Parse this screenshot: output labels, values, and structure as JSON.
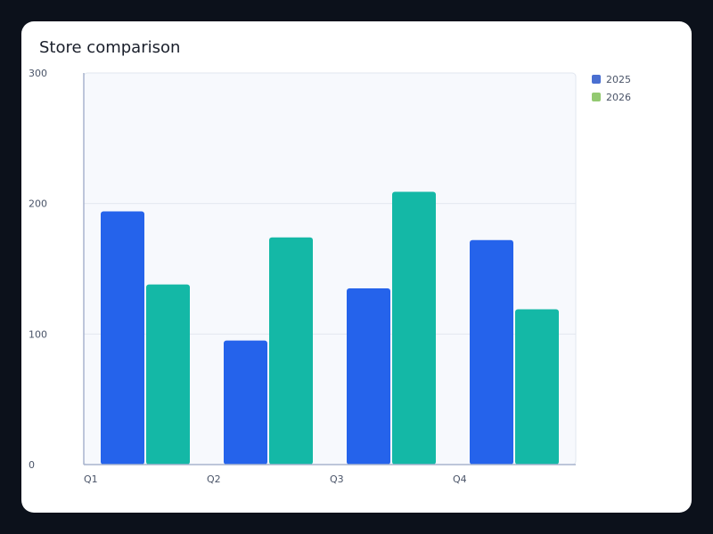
{
  "chart_data": {
    "type": "bar",
    "title": "Store comparison",
    "categories": [
      "Q1",
      "Q2",
      "Q3",
      "Q4"
    ],
    "series": [
      {
        "name": "2025",
        "values": [
          194,
          95,
          135,
          172
        ],
        "bar_color": "#2563eb",
        "legend_color": "#4a6fd1"
      },
      {
        "name": "2026",
        "values": [
          138,
          174,
          209,
          119
        ],
        "bar_color": "#14b8a6",
        "legend_color": "#93c971"
      }
    ],
    "y_ticks": [
      0,
      100,
      200,
      300
    ],
    "ylim": [
      0,
      300
    ],
    "grid": true,
    "legend_position": "top-right"
  }
}
